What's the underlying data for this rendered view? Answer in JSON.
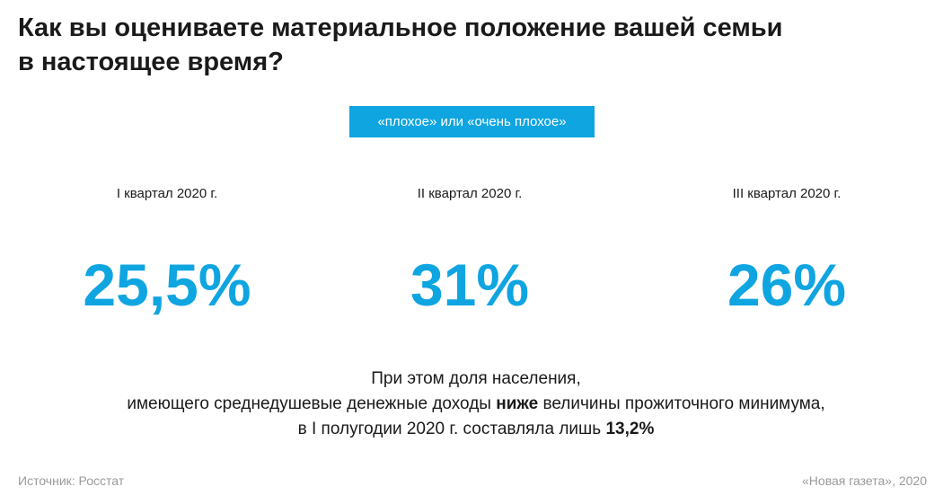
{
  "header": {
    "title_line1": "Как вы оцениваете материальное положение вашей семьи",
    "title_line2": "в настоящее время?"
  },
  "badge": {
    "label": "«плохое» или «очень плохое»",
    "color": "#0fa5e0"
  },
  "chart_data": {
    "type": "table",
    "title": "Как вы оцениваете материальное положение вашей семьи в настоящее время?",
    "series": [
      {
        "name": "«плохое» или «очень плохое»",
        "color": "#0fa5e0",
        "values": [
          25.5,
          31,
          26
        ]
      }
    ],
    "categories": [
      "I квартал 2020 г.",
      "II квартал 2020 г.",
      "III квартал 2020 г."
    ],
    "value_labels": [
      "25,5%",
      "31%",
      "26%"
    ],
    "unit": "%"
  },
  "note": {
    "line1": "При этом доля населения,",
    "line2_before": "имеющего среднедушевые денежные доходы ",
    "line2_bold": "ниже",
    "line2_after": " величины прожиточного минимума,",
    "line3_before": "в I полугодии 2020 г. составляла лишь ",
    "line3_bold": "13,2%"
  },
  "footer": {
    "source": "Источник: Росстат",
    "credit": "«Новая газета», 2020"
  }
}
